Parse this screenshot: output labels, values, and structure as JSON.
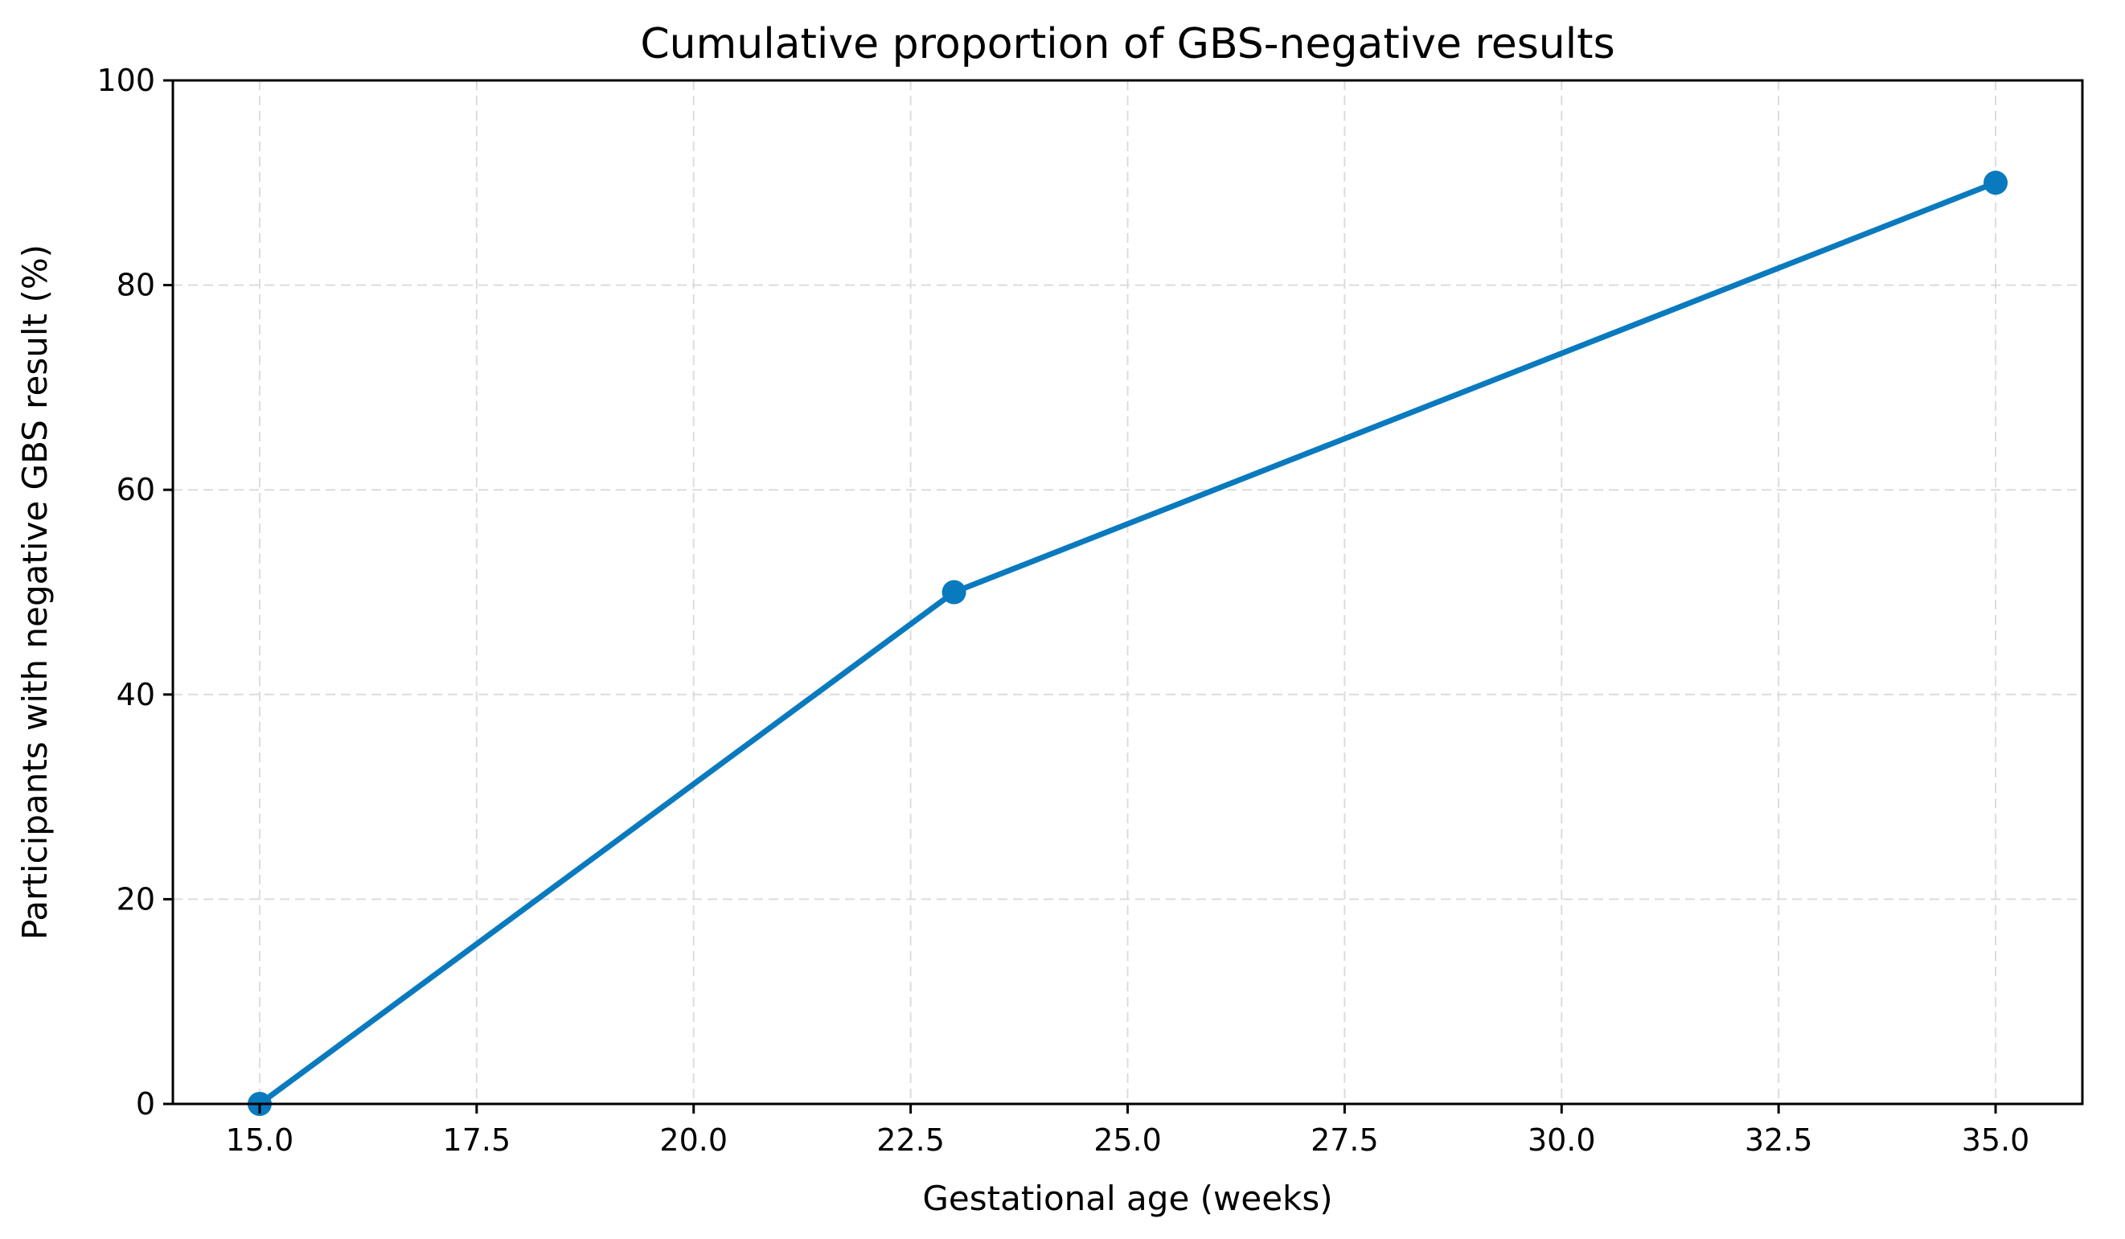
{
  "chart_data": {
    "type": "line",
    "title": "Cumulative proportion of GBS-negative results",
    "xlabel": "Gestational age (weeks)",
    "ylabel": "Participants with negative GBS result (%)",
    "xlim": [
      14.0,
      36.0
    ],
    "ylim": [
      0,
      100
    ],
    "x_ticks": [
      15.0,
      17.5,
      20.0,
      22.5,
      25.0,
      27.5,
      30.0,
      32.5,
      35.0
    ],
    "x_tick_labels": [
      "15.0",
      "17.5",
      "20.0",
      "22.5",
      "25.0",
      "27.5",
      "30.0",
      "32.5",
      "35.0"
    ],
    "y_ticks": [
      0,
      20,
      40,
      60,
      80,
      100
    ],
    "y_tick_labels": [
      "0",
      "20",
      "40",
      "60",
      "80",
      "100"
    ],
    "grid": true,
    "grid_style": "dashed",
    "series": [
      {
        "x": [
          15,
          23,
          35
        ],
        "values": [
          0,
          50,
          90
        ],
        "color": "#0a7abf",
        "marker": "circle"
      }
    ]
  }
}
